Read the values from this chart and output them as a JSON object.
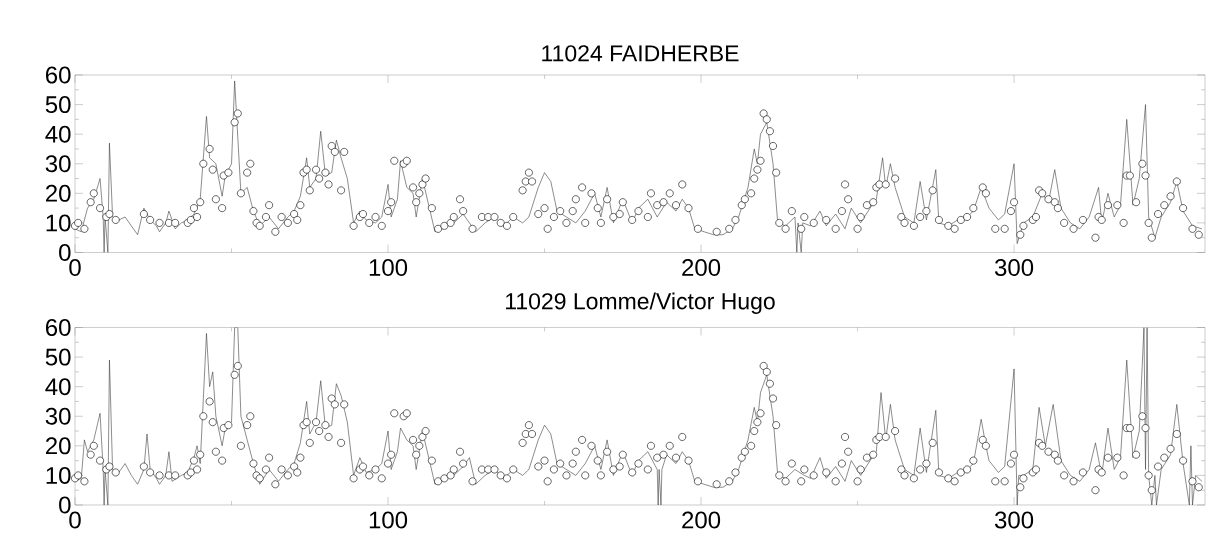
{
  "chart_data": [
    {
      "type": "line",
      "title": "11024 FAIDHERBE",
      "xlim": [
        0,
        361
      ],
      "ylim": [
        0,
        60
      ],
      "xticks": [
        0,
        100,
        200,
        300
      ],
      "yticks": [
        0,
        10,
        20,
        30,
        40,
        50,
        60
      ],
      "series": [
        {
          "color": "#404040",
          "line_style": "solid",
          "x": [
            0,
            2,
            4,
            6,
            8,
            9,
            9.3,
            9.6,
            10.5,
            11,
            12,
            14,
            16,
            18,
            20,
            22,
            24,
            26,
            27,
            29,
            30,
            32,
            34,
            36,
            38,
            40,
            42,
            43,
            45,
            47,
            48,
            50,
            51,
            53,
            55,
            57,
            59,
            62,
            65,
            68,
            70,
            72,
            74,
            75,
            77,
            78.5,
            80,
            82,
            83.5,
            85,
            87,
            89,
            91,
            93,
            96,
            98,
            100,
            101,
            103,
            104,
            106,
            108,
            109,
            111,
            113,
            115,
            118,
            121,
            124,
            126,
            128,
            131,
            134,
            137,
            140,
            143,
            145,
            148,
            150,
            152,
            154,
            157,
            160,
            163,
            166,
            168,
            170,
            172,
            175,
            178,
            180,
            183,
            186,
            189,
            192,
            194,
            196,
            198,
            201,
            204,
            207,
            210,
            212,
            215,
            217,
            218,
            219,
            221,
            223,
            224.5,
            227,
            230,
            230.6,
            231,
            232,
            232.5,
            235,
            238,
            240,
            243,
            246,
            248,
            251,
            254,
            256,
            258,
            259,
            260.5,
            262,
            265,
            268,
            270,
            272,
            275,
            276,
            279,
            282,
            285,
            287,
            289.5,
            292,
            295,
            297,
            300,
            301,
            303,
            306,
            309,
            311,
            313,
            315,
            318,
            321,
            324,
            327,
            328,
            330,
            332,
            334,
            336,
            338,
            340,
            342,
            343,
            345,
            347,
            350,
            352,
            354,
            357,
            360
          ],
          "values": [
            8,
            7,
            15,
            18,
            25,
            12,
            0,
            12,
            0,
            37,
            12,
            11,
            12,
            9,
            6,
            15,
            11,
            9,
            7,
            10,
            14,
            8,
            10,
            11,
            13,
            18,
            46,
            32,
            30,
            19,
            26,
            30,
            58,
            20,
            22,
            14,
            9,
            12,
            8,
            12,
            14,
            19,
            32,
            22,
            25,
            41,
            26,
            27,
            38,
            32,
            25,
            10,
            14,
            11,
            10,
            12,
            23,
            12,
            18,
            31,
            22,
            20,
            12,
            25,
            16,
            7,
            9,
            10,
            13,
            10,
            7,
            10,
            12,
            9,
            12,
            10,
            12,
            22,
            27,
            24,
            14,
            12,
            10,
            14,
            20,
            12,
            22,
            10,
            18,
            10,
            15,
            18,
            12,
            17,
            14,
            18,
            15,
            8,
            7,
            6,
            6,
            8,
            12,
            22,
            35,
            30,
            40,
            44,
            30,
            10,
            9,
            12,
            0,
            10,
            0,
            10,
            9,
            14,
            9,
            13,
            8,
            15,
            10,
            15,
            18,
            32,
            22,
            30,
            22,
            12,
            10,
            24,
            11,
            28,
            10,
            9,
            11,
            12,
            14,
            22,
            15,
            11,
            13,
            30,
            3,
            10,
            12,
            20,
            17,
            28,
            15,
            10,
            8,
            12,
            22,
            10,
            20,
            12,
            16,
            45,
            16,
            25,
            50,
            12,
            5,
            12,
            17,
            24,
            14,
            9,
            8
          ]
        },
        {
          "type": "scatter",
          "color": "#000000",
          "marker": "circle",
          "x": [
            0,
            1,
            3,
            5,
            6,
            8,
            10,
            11,
            13,
            22,
            24,
            27,
            30,
            32,
            36,
            37,
            38,
            39,
            40,
            41,
            43,
            44,
            45,
            47,
            47.5,
            49,
            51,
            52,
            53,
            55,
            56,
            57,
            58,
            59,
            61,
            62,
            64,
            66,
            68,
            70,
            71,
            72,
            73,
            74,
            75,
            77,
            78,
            80,
            81,
            82,
            83,
            85,
            86,
            89,
            91,
            92,
            94,
            96,
            98,
            100,
            101,
            102,
            105,
            106,
            108,
            109,
            110,
            111,
            112,
            114,
            116,
            118,
            120,
            121,
            123,
            124,
            127,
            130,
            132,
            134,
            136,
            138,
            140,
            143,
            144,
            145,
            146,
            148,
            150,
            151,
            153,
            155,
            157,
            159,
            160,
            162,
            163,
            165,
            167,
            168,
            170,
            172,
            174,
            175,
            178,
            180,
            183,
            184,
            186,
            188,
            190,
            192,
            194,
            196,
            199,
            205,
            209,
            211,
            213,
            214,
            216,
            217,
            218,
            219,
            220,
            221,
            222,
            223,
            224,
            225,
            227,
            229,
            232,
            233,
            236,
            240,
            243,
            245,
            246,
            247,
            250,
            251,
            253,
            255,
            256,
            257,
            259,
            262,
            264,
            265,
            268,
            270,
            272,
            274,
            276,
            279,
            281,
            283,
            285,
            287,
            290,
            291,
            294,
            297,
            299,
            300,
            302,
            303,
            306,
            307,
            308,
            309,
            311,
            313,
            314,
            316,
            319,
            322,
            326,
            327,
            328,
            330,
            333,
            335,
            336,
            337,
            339,
            341,
            342,
            343,
            344,
            346,
            348,
            350,
            352,
            354,
            357,
            359
          ],
          "values": [
            9,
            10,
            8,
            17,
            20,
            15,
            12,
            13,
            11,
            13,
            11,
            10,
            10,
            10,
            10,
            11,
            15,
            12,
            17,
            30,
            35,
            28,
            18,
            15,
            26,
            27,
            44,
            47,
            20,
            27,
            30,
            14,
            10,
            9,
            12,
            16,
            7,
            12,
            10,
            13,
            11,
            16,
            27,
            28,
            21,
            28,
            25,
            27,
            23,
            36,
            34,
            21,
            34,
            9,
            12,
            13,
            10,
            12,
            9,
            14,
            17,
            31,
            30,
            31,
            22,
            17,
            20,
            23,
            25,
            15,
            8,
            9,
            10,
            12,
            18,
            14,
            8,
            12,
            12,
            12,
            10,
            9,
            12,
            21,
            24,
            27,
            24,
            13,
            15,
            8,
            12,
            14,
            10,
            14,
            18,
            22,
            10,
            20,
            15,
            10,
            18,
            12,
            13,
            17,
            11,
            14,
            12,
            20,
            16,
            17,
            20,
            16,
            23,
            15,
            8,
            7,
            8,
            11,
            16,
            18,
            20,
            25,
            28,
            31,
            47,
            45,
            41,
            36,
            27,
            10,
            8,
            14,
            8,
            12,
            10,
            11,
            8,
            14,
            23,
            18,
            8,
            12,
            16,
            17,
            22,
            23,
            23,
            25,
            12,
            10,
            9,
            12,
            14,
            21,
            11,
            9,
            8,
            11,
            12,
            15,
            22,
            20,
            8,
            8,
            14,
            17,
            6,
            9,
            11,
            12,
            21,
            20,
            18,
            17,
            15,
            10,
            8,
            11,
            5,
            12,
            11,
            16,
            16,
            10,
            26,
            26,
            17,
            30,
            26,
            10,
            5,
            13,
            16,
            19,
            24,
            15,
            8,
            6
          ]
        }
      ]
    },
    {
      "type": "line",
      "title": "11029 Lomme/Victor Hugo",
      "xlim": [
        0,
        361
      ],
      "ylim": [
        0,
        60
      ],
      "xticks": [
        0,
        100,
        200,
        300
      ],
      "yticks": [
        0,
        10,
        20,
        30,
        40,
        50,
        60
      ],
      "series": [
        {
          "color": "#404040",
          "line_style": "solid",
          "x": [
            0,
            2,
            3,
            4,
            6,
            8,
            9,
            9.3,
            9.6,
            10.5,
            11,
            12,
            14,
            16,
            18,
            20,
            22,
            23,
            24,
            26,
            27,
            29,
            30,
            31,
            34,
            36,
            38,
            39,
            40,
            42,
            43,
            44,
            45,
            47,
            48,
            50,
            51,
            52,
            53,
            55,
            57,
            59,
            62,
            65,
            68,
            70,
            72,
            74,
            75,
            77,
            78.5,
            80,
            82,
            83.5,
            85,
            87,
            89,
            91,
            93,
            96,
            98,
            100,
            101,
            103,
            104,
            106,
            108,
            109,
            111,
            113,
            115,
            118,
            121,
            124,
            126,
            128,
            131,
            134,
            137,
            140,
            143,
            145,
            148,
            150,
            152,
            154,
            157,
            160,
            163,
            166,
            168,
            170,
            172,
            175,
            178,
            180,
            183,
            186,
            186.3,
            186.6,
            187.2,
            187.5,
            189,
            192,
            194,
            196,
            198,
            201,
            204,
            207,
            210,
            212,
            215,
            217,
            218,
            219,
            221,
            223,
            224.5,
            227,
            230,
            233,
            235,
            238,
            240,
            243,
            246,
            248,
            251,
            254,
            256,
            257.5,
            259,
            260.5,
            262,
            265,
            268,
            270,
            272,
            275,
            276,
            279,
            282,
            285,
            287,
            289.5,
            291,
            292,
            295,
            297,
            300,
            301,
            301.5,
            303,
            306,
            308,
            310,
            312.5,
            315,
            318,
            321,
            324,
            326,
            328,
            330,
            332,
            334,
            336,
            338,
            340,
            341.5,
            342,
            342.5,
            343,
            344,
            345,
            345.5,
            347,
            350,
            352,
            354,
            356,
            356.5,
            357,
            358,
            360
          ],
          "values": [
            8,
            9,
            22,
            18,
            22,
            31,
            12,
            0,
            12,
            0,
            49,
            12,
            11,
            14,
            10,
            7,
            12,
            24,
            12,
            9,
            7,
            10,
            18,
            8,
            10,
            11,
            16,
            20,
            14,
            58,
            40,
            45,
            30,
            20,
            26,
            28,
            60,
            60,
            30,
            22,
            14,
            7,
            12,
            8,
            12,
            14,
            21,
            35,
            24,
            28,
            42,
            26,
            27,
            41,
            37,
            28,
            10,
            16,
            11,
            12,
            14,
            25,
            12,
            18,
            26,
            22,
            20,
            12,
            25,
            16,
            7,
            9,
            10,
            13,
            16,
            7,
            10,
            12,
            9,
            12,
            10,
            12,
            22,
            27,
            24,
            14,
            12,
            10,
            14,
            20,
            12,
            22,
            10,
            18,
            10,
            15,
            18,
            12,
            0,
            12,
            0,
            12,
            17,
            14,
            18,
            15,
            8,
            7,
            6,
            6,
            8,
            12,
            22,
            33,
            28,
            38,
            44,
            30,
            10,
            9,
            12,
            10,
            9,
            16,
            9,
            13,
            8,
            15,
            10,
            15,
            18,
            38,
            22,
            34,
            22,
            12,
            10,
            26,
            11,
            32,
            10,
            9,
            11,
            12,
            14,
            29,
            20,
            15,
            11,
            13,
            46,
            0,
            10,
            10,
            12,
            33,
            20,
            34,
            15,
            10,
            8,
            12,
            21,
            10,
            26,
            12,
            16,
            49,
            16,
            25,
            60,
            12,
            60,
            10,
            0,
            10,
            0,
            12,
            17,
            34,
            14,
            0,
            20,
            0,
            10,
            8
          ]
        },
        {
          "type": "scatter",
          "color": "#000000",
          "marker": "circle",
          "x": [
            0,
            1,
            3,
            5,
            6,
            8,
            10,
            11,
            13,
            22,
            24,
            27,
            30,
            32,
            36,
            37,
            38,
            39,
            40,
            41,
            43,
            44,
            45,
            47,
            47.5,
            49,
            51,
            52,
            53,
            55,
            56,
            57,
            58,
            59,
            61,
            62,
            64,
            66,
            68,
            70,
            71,
            72,
            73,
            74,
            75,
            77,
            78,
            80,
            81,
            82,
            83,
            85,
            86,
            89,
            91,
            92,
            94,
            96,
            98,
            100,
            101,
            102,
            105,
            106,
            108,
            109,
            110,
            111,
            112,
            114,
            116,
            118,
            120,
            121,
            123,
            124,
            127,
            130,
            132,
            134,
            136,
            138,
            140,
            143,
            144,
            145,
            146,
            148,
            150,
            151,
            153,
            155,
            157,
            159,
            160,
            162,
            163,
            165,
            167,
            168,
            170,
            172,
            174,
            175,
            178,
            180,
            183,
            184,
            186,
            188,
            190,
            192,
            194,
            196,
            199,
            205,
            209,
            211,
            213,
            214,
            216,
            217,
            218,
            219,
            220,
            221,
            222,
            223,
            224,
            225,
            227,
            229,
            232,
            233,
            236,
            240,
            243,
            245,
            246,
            247,
            250,
            251,
            253,
            255,
            256,
            257,
            259,
            262,
            264,
            265,
            268,
            270,
            272,
            274,
            276,
            279,
            281,
            283,
            285,
            287,
            290,
            291,
            294,
            297,
            299,
            300,
            302,
            303,
            306,
            307,
            308,
            309,
            311,
            313,
            314,
            316,
            319,
            322,
            326,
            327,
            328,
            330,
            333,
            335,
            336,
            337,
            339,
            341,
            342,
            343,
            344,
            346,
            348,
            350,
            352,
            354,
            357,
            359
          ],
          "values": [
            9,
            10,
            8,
            17,
            20,
            15,
            12,
            13,
            11,
            13,
            11,
            10,
            10,
            10,
            10,
            11,
            15,
            12,
            17,
            30,
            35,
            28,
            18,
            15,
            26,
            27,
            44,
            47,
            20,
            27,
            30,
            14,
            10,
            9,
            12,
            16,
            7,
            12,
            10,
            13,
            11,
            16,
            27,
            28,
            21,
            28,
            25,
            27,
            23,
            36,
            34,
            21,
            34,
            9,
            12,
            13,
            10,
            12,
            9,
            14,
            17,
            31,
            30,
            31,
            22,
            17,
            20,
            23,
            25,
            15,
            8,
            9,
            10,
            12,
            18,
            14,
            8,
            12,
            12,
            12,
            10,
            9,
            12,
            21,
            24,
            27,
            24,
            13,
            15,
            8,
            12,
            14,
            10,
            14,
            18,
            22,
            10,
            20,
            15,
            10,
            18,
            12,
            13,
            17,
            11,
            14,
            12,
            20,
            16,
            17,
            20,
            16,
            23,
            15,
            8,
            7,
            8,
            11,
            16,
            18,
            20,
            25,
            28,
            31,
            47,
            45,
            41,
            36,
            27,
            10,
            8,
            14,
            8,
            12,
            10,
            11,
            8,
            14,
            23,
            18,
            8,
            12,
            16,
            17,
            22,
            23,
            23,
            25,
            12,
            10,
            9,
            12,
            14,
            21,
            11,
            9,
            8,
            11,
            12,
            15,
            22,
            20,
            8,
            8,
            14,
            17,
            6,
            9,
            11,
            12,
            21,
            20,
            18,
            17,
            15,
            10,
            8,
            11,
            5,
            12,
            11,
            16,
            16,
            10,
            26,
            26,
            17,
            30,
            26,
            10,
            5,
            13,
            16,
            19,
            24,
            15,
            8,
            6
          ]
        }
      ]
    }
  ]
}
